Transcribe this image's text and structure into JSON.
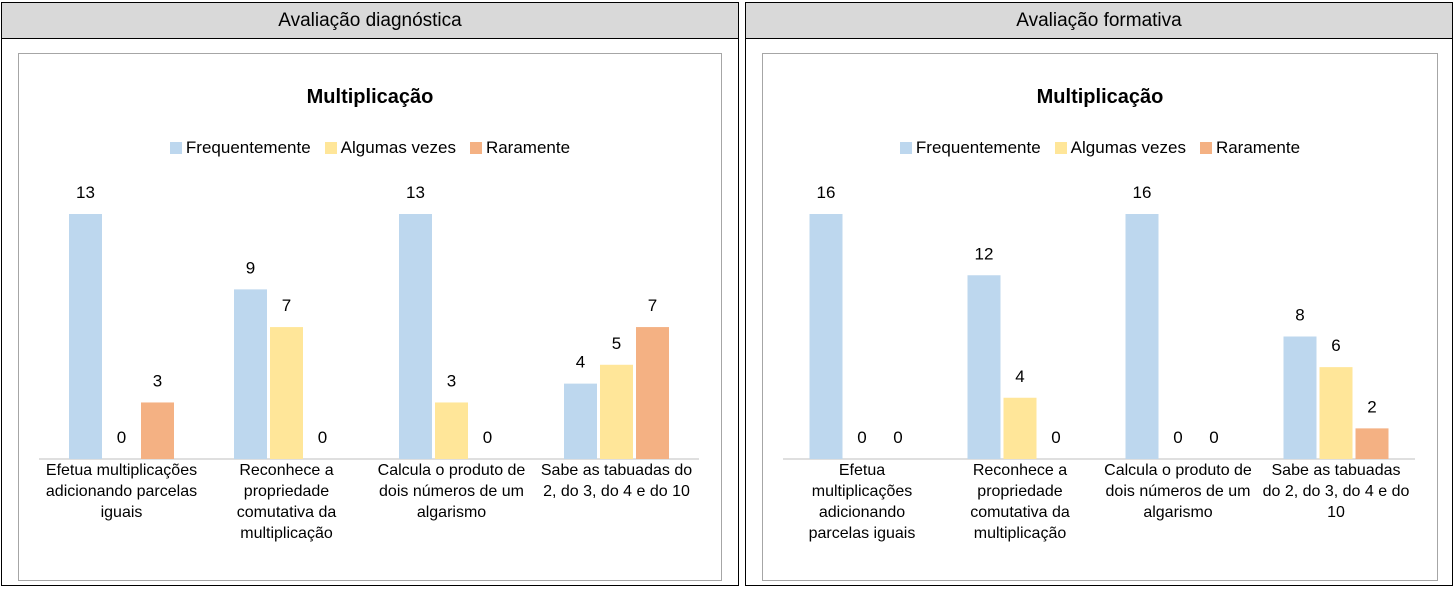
{
  "table": {
    "headers": [
      "Avaliação diagnóstica",
      "Avaliação formativa"
    ]
  },
  "chart_data": [
    {
      "type": "bar",
      "title": "Multiplicação",
      "categories": [
        "Efetua multiplicações adicionando parcelas iguais",
        "Reconhece a propriedade comutativa da multiplicação",
        "Calcula o produto de dois números de um algarismo",
        "Sabe as tabuadas do 2, do 3, do 4 e do 10"
      ],
      "series": [
        {
          "name": "Frequentemente",
          "color": "#bdd7ee",
          "values": [
            13,
            9,
            13,
            4
          ]
        },
        {
          "name": "Algumas vezes",
          "color": "#ffe699",
          "values": [
            0,
            7,
            3,
            5
          ]
        },
        {
          "name": "Raramente",
          "color": "#f4b183",
          "values": [
            3,
            0,
            0,
            7
          ]
        }
      ],
      "legend": "top"
    },
    {
      "type": "bar",
      "title": "Multiplicação",
      "categories": [
        "Efetua multiplicações adicionando parcelas iguais",
        "Reconhece a propriedade comutativa da multiplicação",
        "Calcula o produto de dois números de um algarismo",
        "Sabe as tabuadas do 2, do 3, do 4 e do 10"
      ],
      "series": [
        {
          "name": "Frequentemente",
          "color": "#bdd7ee",
          "values": [
            16,
            12,
            16,
            8
          ]
        },
        {
          "name": "Algumas vezes",
          "color": "#ffe699",
          "values": [
            0,
            4,
            0,
            6
          ]
        },
        {
          "name": "Raramente",
          "color": "#f4b183",
          "values": [
            0,
            0,
            0,
            2
          ]
        }
      ],
      "legend": "top"
    }
  ]
}
